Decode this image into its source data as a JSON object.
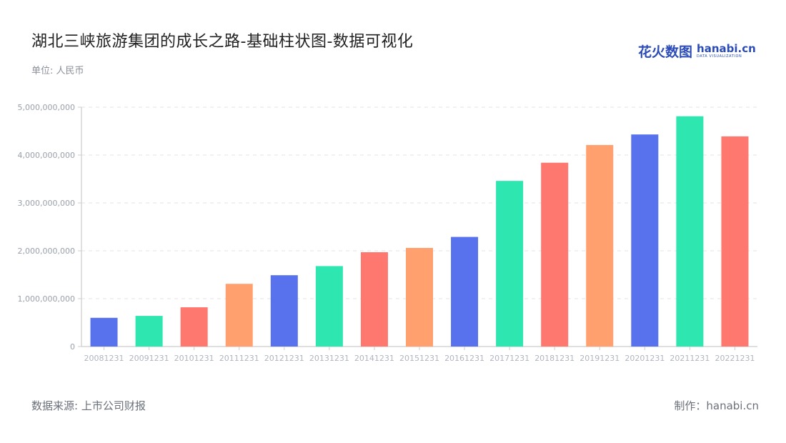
{
  "header": {
    "title": "湖北三峡旅游集团的成长之路-基础柱状图-数据可视化",
    "unit": "单位: 人民币"
  },
  "logo": {
    "cn": "花火数图",
    "en": "hanabi.cn",
    "sub": "DATA VISUALIZATION"
  },
  "footer": {
    "source": "数据来源: 上市公司财报",
    "credit": "制作：hanabi.cn"
  },
  "colors": {
    "palette": [
      "#5872ee",
      "#2ee6b0",
      "#ff7870",
      "#ffa06e"
    ],
    "axis": "#cccccc",
    "grid": "#e3e3e3"
  },
  "chart_data": {
    "type": "bar",
    "title": "湖北三峡旅游集团的成长之路-基础柱状图-数据可视化",
    "xlabel": "",
    "ylabel": "单位: 人民币",
    "ylim": [
      0,
      5000000000
    ],
    "yticks": [
      "0",
      "1,000,000,000",
      "2,000,000,000",
      "3,000,000,000",
      "4,000,000,000",
      "5,000,000,000"
    ],
    "grid": true,
    "legend": "none",
    "categories": [
      "20081231",
      "20091231",
      "20101231",
      "20111231",
      "20121231",
      "20131231",
      "20141231",
      "20151231",
      "20161231",
      "20171231",
      "20181231",
      "20191231",
      "20201231",
      "20211231",
      "20221231"
    ],
    "values": [
      600000000,
      640000000,
      820000000,
      1310000000,
      1490000000,
      1680000000,
      1970000000,
      2060000000,
      2290000000,
      3460000000,
      3840000000,
      4210000000,
      4430000000,
      4810000000,
      4390000000
    ]
  }
}
